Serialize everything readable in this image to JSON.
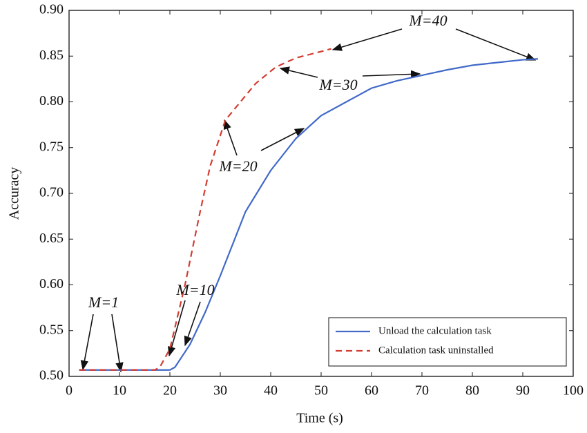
{
  "chart_data": {
    "type": "line",
    "xlabel": "Time (s)",
    "ylabel": "Accuracy",
    "xlim": [
      0,
      100
    ],
    "ylim": [
      0.5,
      0.9
    ],
    "xticks": [
      0,
      10,
      20,
      30,
      40,
      50,
      60,
      70,
      80,
      90,
      100
    ],
    "yticks": [
      {
        "value": 0.5,
        "label": "0.50"
      },
      0.55,
      {
        "value": 0.6,
        "label": "0.60"
      },
      0.65,
      {
        "value": 0.7,
        "label": "0.70"
      },
      0.75,
      {
        "value": 0.8,
        "label": "0.80"
      },
      0.85,
      {
        "value": 0.9,
        "label": "0.90"
      }
    ],
    "legend": "lower right",
    "series": [
      {
        "name": "Unload the calculation task",
        "color": "#4169c8",
        "dash": false,
        "x": [
          2,
          10,
          20,
          21,
          24,
          27,
          30,
          35,
          40,
          45,
          50,
          55,
          60,
          65,
          70,
          75,
          80,
          85,
          90,
          93
        ],
        "values": [
          0.507,
          0.507,
          0.507,
          0.51,
          0.535,
          0.57,
          0.61,
          0.68,
          0.725,
          0.76,
          0.785,
          0.8,
          0.815,
          0.823,
          0.829,
          0.835,
          0.84,
          0.843,
          0.846,
          0.847
        ]
      },
      {
        "name": "Calculation task uninstalled",
        "color": "#d23c32",
        "dash": true,
        "x": [
          2,
          10,
          17,
          18,
          20,
          23,
          26,
          28,
          31,
          34,
          37,
          41,
          45,
          50,
          52
        ],
        "values": [
          0.507,
          0.507,
          0.507,
          0.51,
          0.53,
          0.6,
          0.68,
          0.73,
          0.78,
          0.8,
          0.82,
          0.838,
          0.848,
          0.855,
          0.858
        ]
      }
    ],
    "annotations": [
      "M=1",
      "M=10",
      "M=20",
      "M=30",
      "M=40"
    ]
  }
}
